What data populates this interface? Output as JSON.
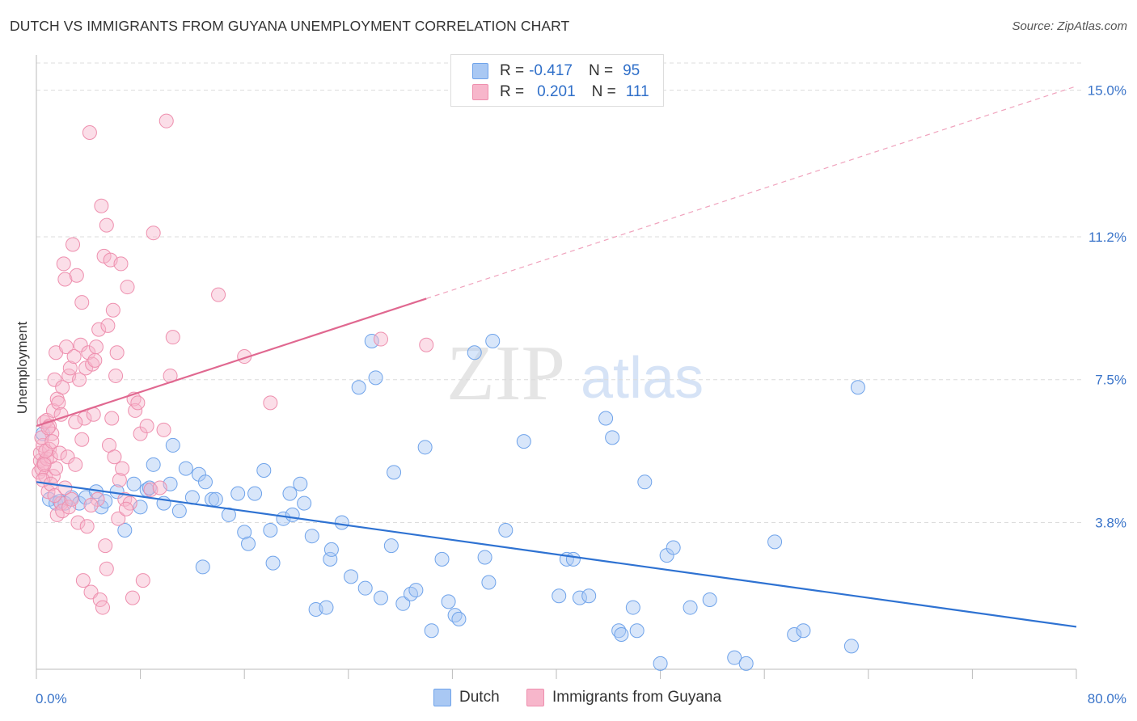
{
  "title": "DUTCH VS IMMIGRANTS FROM GUYANA UNEMPLOYMENT CORRELATION CHART",
  "source": "Source: ZipAtlas.com",
  "watermark": {
    "zip": "ZIP",
    "atlas": "atlas"
  },
  "legend": {
    "rows": [
      {
        "r_label": "R =",
        "r_value": "-0.417",
        "n_label": "N =",
        "n_value": "95",
        "color": "#a9c8f3"
      },
      {
        "r_label": "R =",
        "r_value": "0.201",
        "n_label": "N =",
        "n_value": "111",
        "color": "#f7b6cb"
      }
    ]
  },
  "bottom_legend": [
    {
      "label": "Dutch",
      "color": "#a9c8f3"
    },
    {
      "label": "Immigrants from Guyana",
      "color": "#f7b6cb"
    }
  ],
  "chart_data": {
    "type": "scatter",
    "ylabel": "Unemployment",
    "x_tick_labels": [
      "0.0%",
      "80.0%"
    ],
    "y_tick_labels": [
      "3.8%",
      "7.5%",
      "11.2%",
      "15.0%"
    ],
    "y_ticks": [
      3.8,
      7.5,
      11.2,
      15.0
    ],
    "xlim": [
      0,
      80
    ],
    "ylim": [
      0,
      15.7
    ],
    "grid": true,
    "series": [
      {
        "name": "Dutch",
        "color": "#6fa3ea",
        "fill": "#a9c8f3",
        "trend": {
          "x": [
            0,
            80
          ],
          "y": [
            4.85,
            1.1
          ],
          "color": "#2e72d2"
        },
        "points": [
          [
            0.5,
            6.1
          ],
          [
            1.0,
            4.4
          ],
          [
            1.5,
            4.3
          ],
          [
            1.8,
            4.35
          ],
          [
            2.2,
            4.3
          ],
          [
            2.7,
            4.45
          ],
          [
            3.3,
            4.3
          ],
          [
            3.8,
            4.45
          ],
          [
            4.6,
            4.6
          ],
          [
            5.0,
            4.2
          ],
          [
            5.3,
            4.35
          ],
          [
            6.2,
            4.6
          ],
          [
            6.8,
            3.6
          ],
          [
            7.5,
            4.8
          ],
          [
            8.0,
            4.2
          ],
          [
            8.5,
            4.65
          ],
          [
            9.0,
            5.3
          ],
          [
            9.8,
            4.3
          ],
          [
            10.3,
            4.8
          ],
          [
            10.5,
            5.8
          ],
          [
            11.0,
            4.1
          ],
          [
            11.5,
            5.2
          ],
          [
            12.0,
            4.45
          ],
          [
            12.5,
            5.05
          ],
          [
            12.8,
            2.65
          ],
          [
            13.0,
            4.85
          ],
          [
            13.5,
            4.4
          ],
          [
            13.8,
            4.4
          ],
          [
            14.8,
            4.0
          ],
          [
            15.5,
            4.55
          ],
          [
            16.0,
            3.55
          ],
          [
            16.3,
            3.25
          ],
          [
            16.8,
            4.55
          ],
          [
            17.5,
            5.15
          ],
          [
            18.0,
            3.6
          ],
          [
            18.2,
            2.75
          ],
          [
            19.0,
            3.9
          ],
          [
            19.5,
            4.55
          ],
          [
            19.7,
            4.0
          ],
          [
            20.3,
            4.8
          ],
          [
            20.6,
            4.3
          ],
          [
            21.2,
            3.45
          ],
          [
            21.5,
            1.55
          ],
          [
            22.3,
            1.6
          ],
          [
            22.6,
            2.85
          ],
          [
            22.7,
            3.1
          ],
          [
            23.5,
            3.8
          ],
          [
            24.2,
            2.4
          ],
          [
            24.8,
            7.3
          ],
          [
            25.3,
            2.1
          ],
          [
            25.8,
            8.5
          ],
          [
            26.1,
            7.55
          ],
          [
            26.5,
            1.85
          ],
          [
            27.3,
            3.2
          ],
          [
            27.5,
            5.1
          ],
          [
            28.2,
            1.7
          ],
          [
            28.8,
            1.95
          ],
          [
            29.2,
            2.05
          ],
          [
            29.9,
            5.75
          ],
          [
            30.4,
            1.0
          ],
          [
            31.2,
            2.85
          ],
          [
            31.7,
            1.75
          ],
          [
            32.2,
            1.4
          ],
          [
            32.5,
            1.3
          ],
          [
            33.7,
            8.2
          ],
          [
            34.5,
            2.9
          ],
          [
            34.8,
            2.25
          ],
          [
            35.1,
            8.5
          ],
          [
            36.1,
            3.6
          ],
          [
            37.5,
            5.9
          ],
          [
            40.2,
            1.9
          ],
          [
            40.8,
            2.85
          ],
          [
            41.3,
            2.85
          ],
          [
            41.8,
            1.85
          ],
          [
            42.5,
            1.9
          ],
          [
            43.8,
            6.5
          ],
          [
            44.3,
            6.0
          ],
          [
            44.8,
            1.0
          ],
          [
            45.0,
            0.9
          ],
          [
            45.9,
            1.6
          ],
          [
            46.2,
            1.0
          ],
          [
            46.8,
            4.85
          ],
          [
            48.0,
            0.15
          ],
          [
            48.5,
            2.95
          ],
          [
            49.0,
            3.15
          ],
          [
            50.3,
            1.6
          ],
          [
            51.8,
            1.8
          ],
          [
            53.7,
            0.3
          ],
          [
            54.6,
            0.15
          ],
          [
            56.8,
            3.3
          ],
          [
            58.3,
            0.9
          ],
          [
            59.0,
            1.0
          ],
          [
            62.7,
            0.6
          ],
          [
            63.2,
            7.3
          ],
          [
            8.7,
            4.7
          ]
        ]
      },
      {
        "name": "Immigrants from Guyana",
        "color": "#ee8fae",
        "fill": "#f7b6cb",
        "trend": {
          "x": [
            0,
            30
          ],
          "y": [
            6.3,
            9.6
          ],
          "color": "#e06890"
        },
        "trend_ext": {
          "x": [
            30,
            80
          ],
          "y": [
            9.6,
            15.1
          ]
        },
        "points": [
          [
            0.2,
            5.1
          ],
          [
            0.3,
            5.4
          ],
          [
            0.3,
            5.6
          ],
          [
            0.4,
            5.2
          ],
          [
            0.5,
            5.8
          ],
          [
            0.6,
            5.35
          ],
          [
            0.6,
            6.4
          ],
          [
            0.7,
            5.0
          ],
          [
            0.8,
            5.45
          ],
          [
            0.8,
            6.45
          ],
          [
            0.9,
            4.6
          ],
          [
            1.0,
            5.7
          ],
          [
            1.0,
            6.3
          ],
          [
            1.1,
            5.5
          ],
          [
            1.2,
            6.1
          ],
          [
            1.3,
            5.0
          ],
          [
            1.3,
            6.7
          ],
          [
            1.4,
            7.5
          ],
          [
            1.5,
            5.2
          ],
          [
            1.5,
            8.2
          ],
          [
            1.6,
            4.0
          ],
          [
            1.6,
            7.0
          ],
          [
            1.7,
            6.9
          ],
          [
            1.8,
            5.6
          ],
          [
            1.9,
            4.3
          ],
          [
            2.0,
            4.1
          ],
          [
            2.0,
            7.3
          ],
          [
            2.1,
            10.5
          ],
          [
            2.2,
            10.1
          ],
          [
            2.3,
            8.35
          ],
          [
            2.4,
            5.5
          ],
          [
            2.5,
            7.6
          ],
          [
            2.5,
            4.2
          ],
          [
            2.6,
            7.8
          ],
          [
            2.7,
            4.4
          ],
          [
            2.8,
            11.0
          ],
          [
            2.9,
            8.1
          ],
          [
            3.0,
            5.3
          ],
          [
            3.1,
            10.2
          ],
          [
            3.2,
            3.8
          ],
          [
            3.3,
            7.5
          ],
          [
            3.4,
            8.4
          ],
          [
            3.5,
            9.5
          ],
          [
            3.6,
            2.3
          ],
          [
            3.7,
            6.5
          ],
          [
            3.8,
            7.8
          ],
          [
            3.9,
            3.7
          ],
          [
            4.0,
            8.2
          ],
          [
            4.1,
            13.9
          ],
          [
            4.2,
            2.0
          ],
          [
            4.3,
            7.9
          ],
          [
            4.4,
            6.6
          ],
          [
            4.5,
            8.0
          ],
          [
            4.6,
            8.35
          ],
          [
            4.7,
            4.4
          ],
          [
            4.8,
            8.8
          ],
          [
            4.9,
            1.8
          ],
          [
            5.0,
            12.0
          ],
          [
            5.1,
            1.6
          ],
          [
            5.2,
            10.7
          ],
          [
            5.3,
            3.2
          ],
          [
            5.4,
            11.5
          ],
          [
            5.5,
            8.9
          ],
          [
            5.6,
            5.8
          ],
          [
            5.7,
            10.6
          ],
          [
            5.8,
            6.5
          ],
          [
            5.9,
            9.3
          ],
          [
            6.0,
            5.5
          ],
          [
            6.1,
            7.6
          ],
          [
            6.2,
            8.2
          ],
          [
            6.3,
            3.9
          ],
          [
            6.4,
            4.9
          ],
          [
            6.5,
            10.5
          ],
          [
            6.6,
            5.2
          ],
          [
            6.8,
            4.4
          ],
          [
            7.0,
            9.9
          ],
          [
            7.2,
            4.3
          ],
          [
            7.4,
            1.85
          ],
          [
            7.5,
            7.0
          ],
          [
            7.6,
            6.7
          ],
          [
            7.8,
            6.9
          ],
          [
            8.0,
            6.1
          ],
          [
            8.2,
            2.3
          ],
          [
            8.5,
            6.3
          ],
          [
            8.8,
            4.65
          ],
          [
            9.0,
            11.3
          ],
          [
            9.5,
            4.7
          ],
          [
            9.8,
            6.2
          ],
          [
            10.0,
            14.2
          ],
          [
            10.3,
            7.6
          ],
          [
            10.5,
            8.6
          ],
          [
            14.0,
            9.7
          ],
          [
            16.0,
            8.1
          ],
          [
            18.0,
            6.9
          ],
          [
            26.5,
            8.55
          ],
          [
            30.0,
            8.4
          ],
          [
            0.4,
            6.0
          ],
          [
            0.5,
            4.9
          ],
          [
            0.6,
            5.3
          ],
          [
            0.7,
            5.65
          ],
          [
            0.9,
            6.25
          ],
          [
            1.1,
            4.8
          ],
          [
            1.2,
            5.9
          ],
          [
            1.4,
            4.5
          ],
          [
            2.2,
            4.7
          ],
          [
            3.0,
            6.4
          ],
          [
            3.5,
            5.95
          ],
          [
            4.2,
            4.25
          ],
          [
            6.9,
            4.15
          ],
          [
            5.4,
            2.6
          ],
          [
            1.9,
            6.6
          ]
        ]
      }
    ]
  }
}
